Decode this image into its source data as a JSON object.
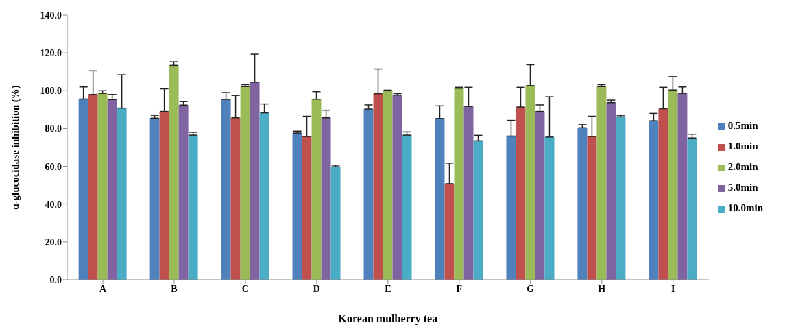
{
  "chart_data": {
    "type": "bar",
    "xlabel": "Korean mulberry  tea",
    "ylabel": "α-glucocidase inhibition (%)",
    "categories": [
      "A",
      "B",
      "C",
      "D",
      "E",
      "F",
      "G",
      "H",
      "I"
    ],
    "ylim": [
      0,
      140
    ],
    "yticks": [
      {
        "value": 0,
        "label": "0.0"
      },
      {
        "value": 20,
        "label": "20.0"
      },
      {
        "value": 40,
        "label": "40.0"
      },
      {
        "value": 60,
        "label": "60.0"
      },
      {
        "value": 80,
        "label": "80.0"
      },
      {
        "value": 100,
        "label": "100.0"
      },
      {
        "value": 120,
        "label": "120.0"
      },
      {
        "value": 140,
        "label": "140.0"
      }
    ],
    "grid": false,
    "legend": "right",
    "series": [
      {
        "name": "0.5min",
        "color": "#4f81bd",
        "values": [
          95.6,
          85.5,
          95.4,
          77.6,
          90.3,
          85.3,
          76.0,
          80.4,
          84.1
        ],
        "errors": [
          [
            95.6,
            102.0
          ],
          [
            85.5,
            87.0
          ],
          [
            95.4,
            99.0
          ],
          [
            77.6,
            78.6
          ],
          [
            90.3,
            92.5
          ],
          [
            85.3,
            92.0
          ],
          [
            76.0,
            84.3
          ],
          [
            80.4,
            82.0
          ],
          [
            84.1,
            88.0
          ]
        ]
      },
      {
        "name": "1.0min",
        "color": "#c0504d",
        "values": [
          98.0,
          89.0,
          85.7,
          75.8,
          98.4,
          50.8,
          91.4,
          75.8,
          90.5
        ],
        "errors": [
          [
            98.0,
            110.5
          ],
          [
            89.0,
            101.0
          ],
          [
            85.7,
            97.5
          ],
          [
            75.8,
            86.5
          ],
          [
            98.4,
            111.5
          ],
          [
            50.8,
            61.7
          ],
          [
            91.4,
            101.8
          ],
          [
            75.8,
            86.5
          ],
          [
            90.5,
            101.8
          ]
        ]
      },
      {
        "name": "2.0min",
        "color": "#9bbb59",
        "values": [
          98.6,
          113.4,
          102.2,
          95.5,
          100.0,
          101.3,
          102.7,
          102.2,
          100.4
        ],
        "errors": [
          [
            98.6,
            100.0
          ],
          [
            113.4,
            115.3
          ],
          [
            102.2,
            103.2
          ],
          [
            95.5,
            99.5
          ],
          [
            100.0,
            100.3
          ],
          [
            101.3,
            101.8
          ],
          [
            102.7,
            113.7
          ],
          [
            102.2,
            103.2
          ],
          [
            100.4,
            107.4
          ]
        ]
      },
      {
        "name": "5.0min",
        "color": "#8064a2",
        "values": [
          95.3,
          92.4,
          104.5,
          85.7,
          97.7,
          91.7,
          89.0,
          93.7,
          98.6
        ],
        "errors": [
          [
            95.3,
            98.0
          ],
          [
            92.4,
            94.2
          ],
          [
            104.5,
            119.3
          ],
          [
            85.7,
            89.7
          ],
          [
            97.7,
            98.5
          ],
          [
            91.7,
            101.8
          ],
          [
            89.0,
            92.5
          ],
          [
            93.7,
            95.0
          ],
          [
            98.6,
            102.0
          ]
        ]
      },
      {
        "name": "10.0min",
        "color": "#4bacc6",
        "values": [
          90.8,
          76.5,
          88.3,
          59.8,
          76.5,
          73.5,
          75.5,
          86.2,
          75.0
        ],
        "errors": [
          [
            90.8,
            108.4
          ],
          [
            76.5,
            78.0
          ],
          [
            88.3,
            93.0
          ],
          [
            59.8,
            60.6
          ],
          [
            76.5,
            78.2
          ],
          [
            73.5,
            76.4
          ],
          [
            75.5,
            96.8
          ],
          [
            86.2,
            87.0
          ],
          [
            75.0,
            77.0
          ]
        ]
      }
    ]
  }
}
